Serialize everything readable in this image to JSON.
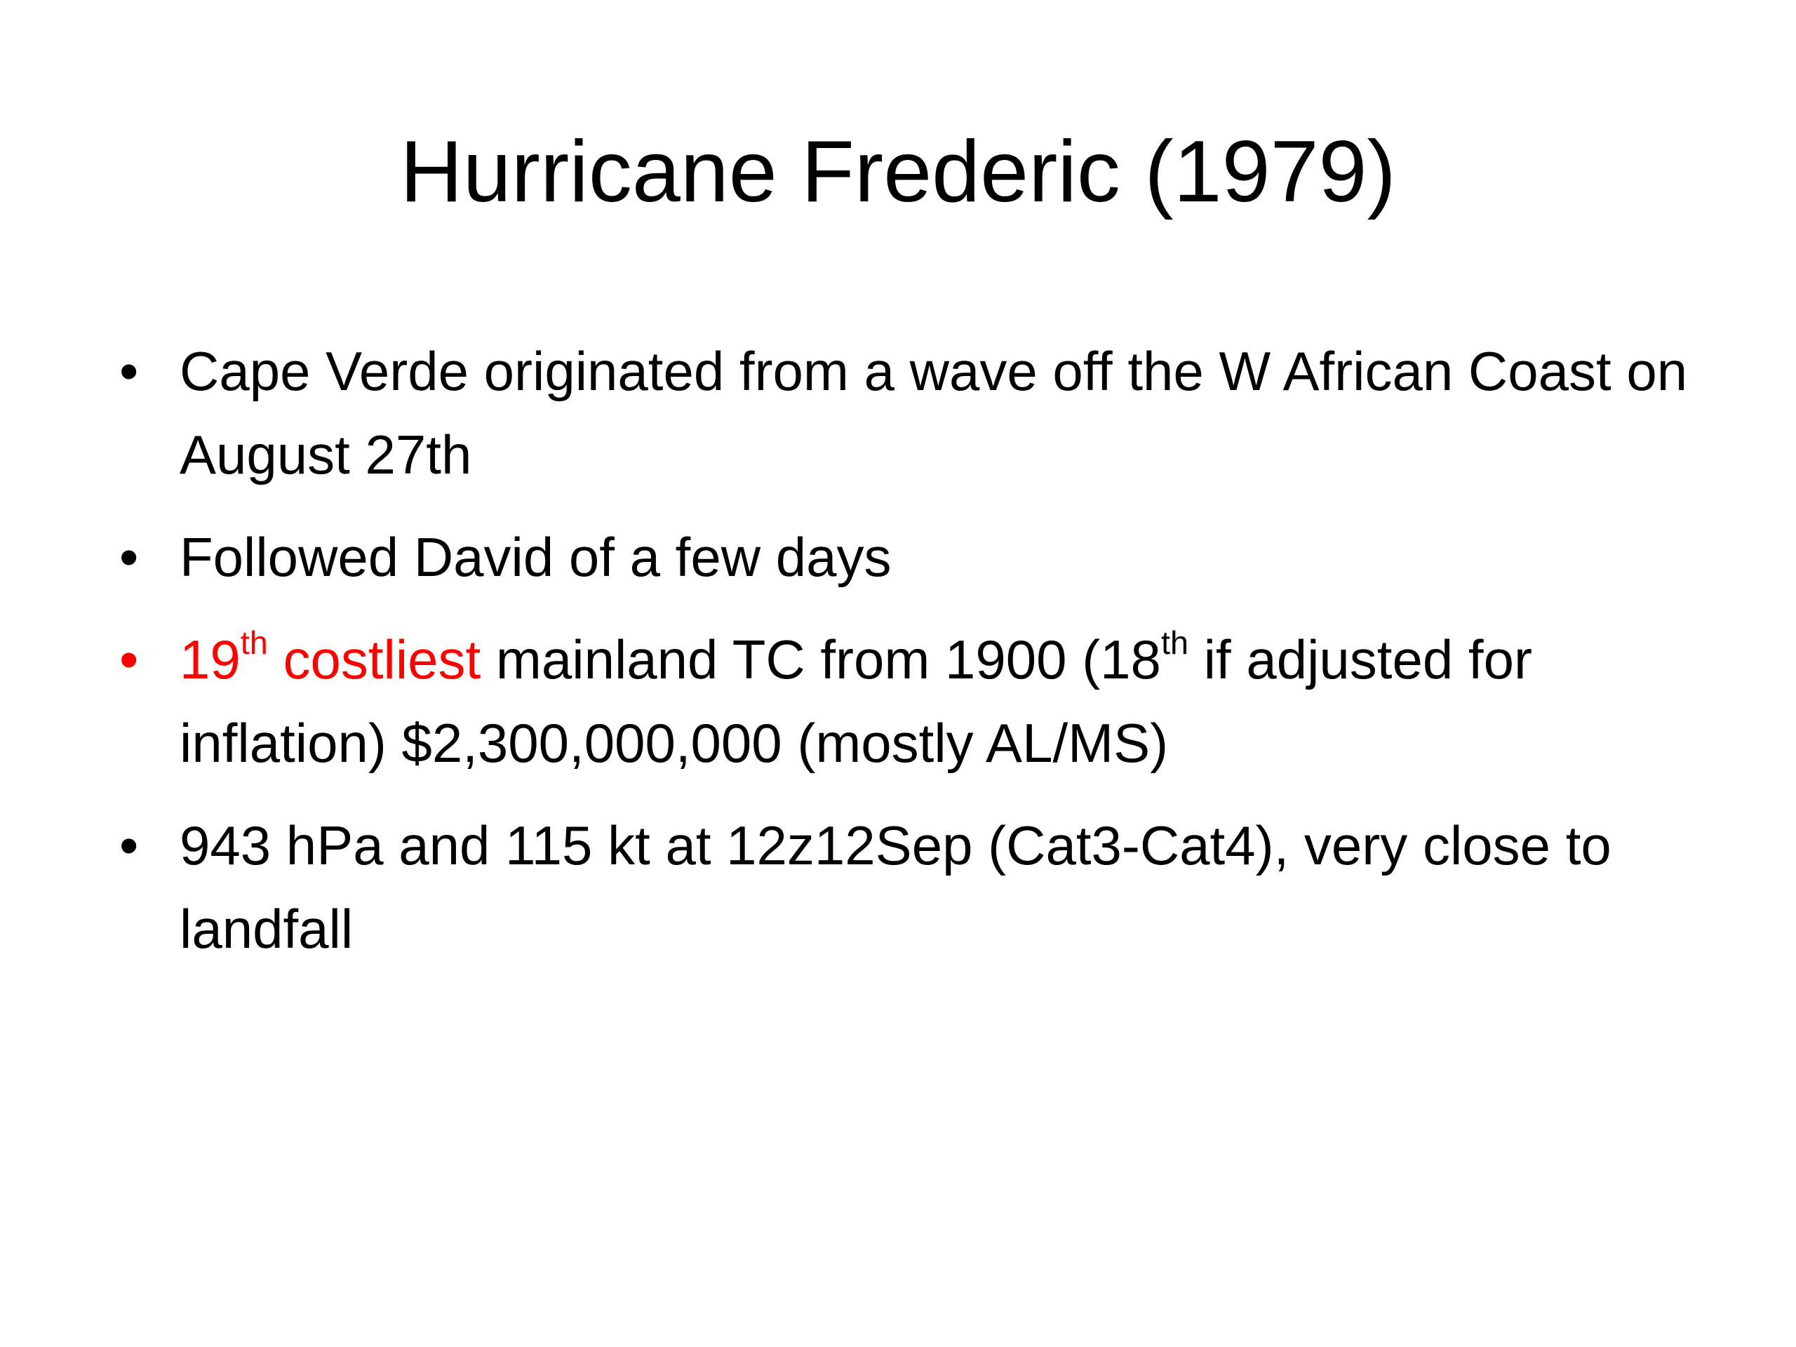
{
  "slide": {
    "title": "Hurricane Frederic (1979)",
    "bullets": [
      {
        "runs": [
          {
            "text": "Cape Verde originated from a wave off the W African Coast on August 27th"
          }
        ]
      },
      {
        "runs": [
          {
            "text": "Followed David of a few days"
          }
        ]
      },
      {
        "runs": [
          {
            "text": "19",
            "color": "#ff0000"
          },
          {
            "text": "th",
            "color": "#ff0000",
            "superscript": true
          },
          {
            "text": " costliest",
            "color": "#ff0000"
          },
          {
            "text": " mainland TC from 1900 (18"
          },
          {
            "text": "th",
            "superscript": true
          },
          {
            "text": " if adjusted for inflation) $2,300,000,000 (mostly AL/MS)"
          }
        ]
      },
      {
        "runs": [
          {
            "text": "943 hPa and 115 kt at 12z12Sep (Cat3-Cat4), very close to landfall"
          }
        ]
      }
    ]
  }
}
